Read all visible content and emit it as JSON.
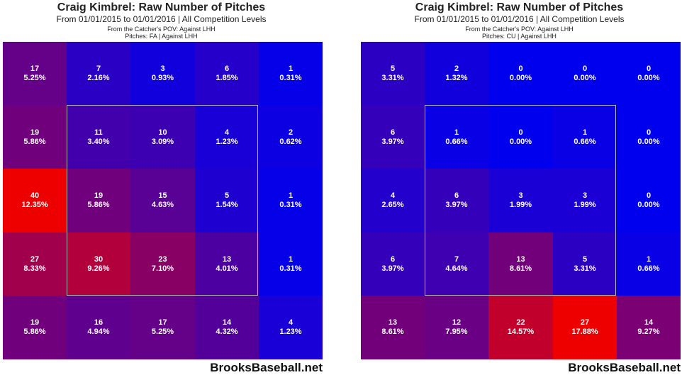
{
  "chart_data": [
    {
      "type": "heatmap",
      "title": "Craig Kimbrel: Raw Number of Pitches",
      "subtitle": "From 01/01/2015 to 01/01/2016 | All Competition Levels",
      "pov_line": "From the Catcher's POV:  Against LHH",
      "pitch_line": "Pitches:  FA  |  Against LHH",
      "rows": [
        [
          {
            "count": "17",
            "pct": "5.25%"
          },
          {
            "count": "7",
            "pct": "2.16%"
          },
          {
            "count": "3",
            "pct": "0.93%"
          },
          {
            "count": "6",
            "pct": "1.85%"
          },
          {
            "count": "1",
            "pct": "0.31%"
          }
        ],
        [
          {
            "count": "19",
            "pct": "5.86%"
          },
          {
            "count": "11",
            "pct": "3.40%"
          },
          {
            "count": "10",
            "pct": "3.09%"
          },
          {
            "count": "4",
            "pct": "1.23%"
          },
          {
            "count": "2",
            "pct": "0.62%"
          }
        ],
        [
          {
            "count": "40",
            "pct": "12.35%"
          },
          {
            "count": "19",
            "pct": "5.86%"
          },
          {
            "count": "15",
            "pct": "4.63%"
          },
          {
            "count": "5",
            "pct": "1.54%"
          },
          {
            "count": "1",
            "pct": "0.31%"
          }
        ],
        [
          {
            "count": "27",
            "pct": "8.33%"
          },
          {
            "count": "30",
            "pct": "9.26%"
          },
          {
            "count": "23",
            "pct": "7.10%"
          },
          {
            "count": "13",
            "pct": "4.01%"
          },
          {
            "count": "1",
            "pct": "0.31%"
          }
        ],
        [
          {
            "count": "19",
            "pct": "5.86%"
          },
          {
            "count": "16",
            "pct": "4.94%"
          },
          {
            "count": "17",
            "pct": "5.25%"
          },
          {
            "count": "14",
            "pct": "4.32%"
          },
          {
            "count": "4",
            "pct": "1.23%"
          }
        ]
      ],
      "color_scale": {
        "low": "#0000ee",
        "high": "#ee0000"
      },
      "brand": "BrooksBaseball.net"
    },
    {
      "type": "heatmap",
      "title": "Craig Kimbrel: Raw Number of Pitches",
      "subtitle": "From 01/01/2015 to 01/01/2016 | All Competition Levels",
      "pov_line": "From the Catcher's POV:  Against LHH",
      "pitch_line": "Pitches:  CU  |  Against LHH",
      "rows": [
        [
          {
            "count": "5",
            "pct": "3.31%"
          },
          {
            "count": "2",
            "pct": "1.32%"
          },
          {
            "count": "0",
            "pct": "0.00%"
          },
          {
            "count": "0",
            "pct": "0.00%"
          },
          {
            "count": "0",
            "pct": "0.00%"
          }
        ],
        [
          {
            "count": "6",
            "pct": "3.97%"
          },
          {
            "count": "1",
            "pct": "0.66%"
          },
          {
            "count": "0",
            "pct": "0.00%"
          },
          {
            "count": "1",
            "pct": "0.66%"
          },
          {
            "count": "0",
            "pct": "0.00%"
          }
        ],
        [
          {
            "count": "4",
            "pct": "2.65%"
          },
          {
            "count": "6",
            "pct": "3.97%"
          },
          {
            "count": "3",
            "pct": "1.99%"
          },
          {
            "count": "3",
            "pct": "1.99%"
          },
          {
            "count": "0",
            "pct": "0.00%"
          }
        ],
        [
          {
            "count": "6",
            "pct": "3.97%"
          },
          {
            "count": "7",
            "pct": "4.64%"
          },
          {
            "count": "13",
            "pct": "8.61%"
          },
          {
            "count": "5",
            "pct": "3.31%"
          },
          {
            "count": "1",
            "pct": "0.66%"
          }
        ],
        [
          {
            "count": "13",
            "pct": "8.61%"
          },
          {
            "count": "12",
            "pct": "7.95%"
          },
          {
            "count": "22",
            "pct": "14.57%"
          },
          {
            "count": "27",
            "pct": "17.88%"
          },
          {
            "count": "14",
            "pct": "9.27%"
          }
        ]
      ],
      "color_scale": {
        "low": "#0000ee",
        "high": "#ee0000"
      },
      "brand": "BrooksBaseball.net"
    }
  ]
}
